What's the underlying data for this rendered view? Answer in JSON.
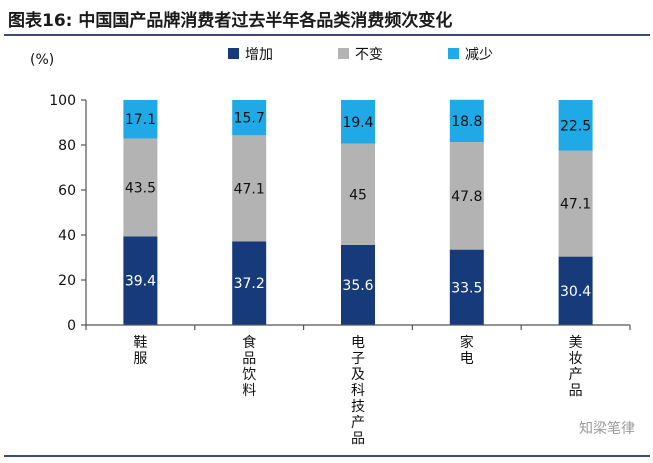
{
  "header": {
    "title": "图表16:  中国国产品牌消费者过去半年各品类消费频次变化"
  },
  "watermark": "知梁笔律",
  "colors": {
    "increase": "#173a7a",
    "unchanged": "#b3b3b3",
    "decrease": "#1fa9e6",
    "rule": "#3a4d7a"
  },
  "chart_data": {
    "type": "bar",
    "stacked": true,
    "title": "",
    "xlabel": "",
    "ylabel": "(%)",
    "ylim": [
      0,
      100
    ],
    "yticks": [
      0,
      20,
      40,
      60,
      80,
      100
    ],
    "legend_position": "top",
    "grid": false,
    "categories": [
      "鞋服",
      "食品饮料",
      "电子及科技产品",
      "家电",
      "美妆产品"
    ],
    "series": [
      {
        "name": "增加",
        "values": [
          39.4,
          37.2,
          35.6,
          33.5,
          30.4
        ]
      },
      {
        "name": "不变",
        "values": [
          43.5,
          47.1,
          45,
          47.8,
          47.1
        ]
      },
      {
        "name": "减少",
        "values": [
          17.1,
          15.7,
          19.4,
          18.8,
          22.5
        ]
      }
    ]
  }
}
